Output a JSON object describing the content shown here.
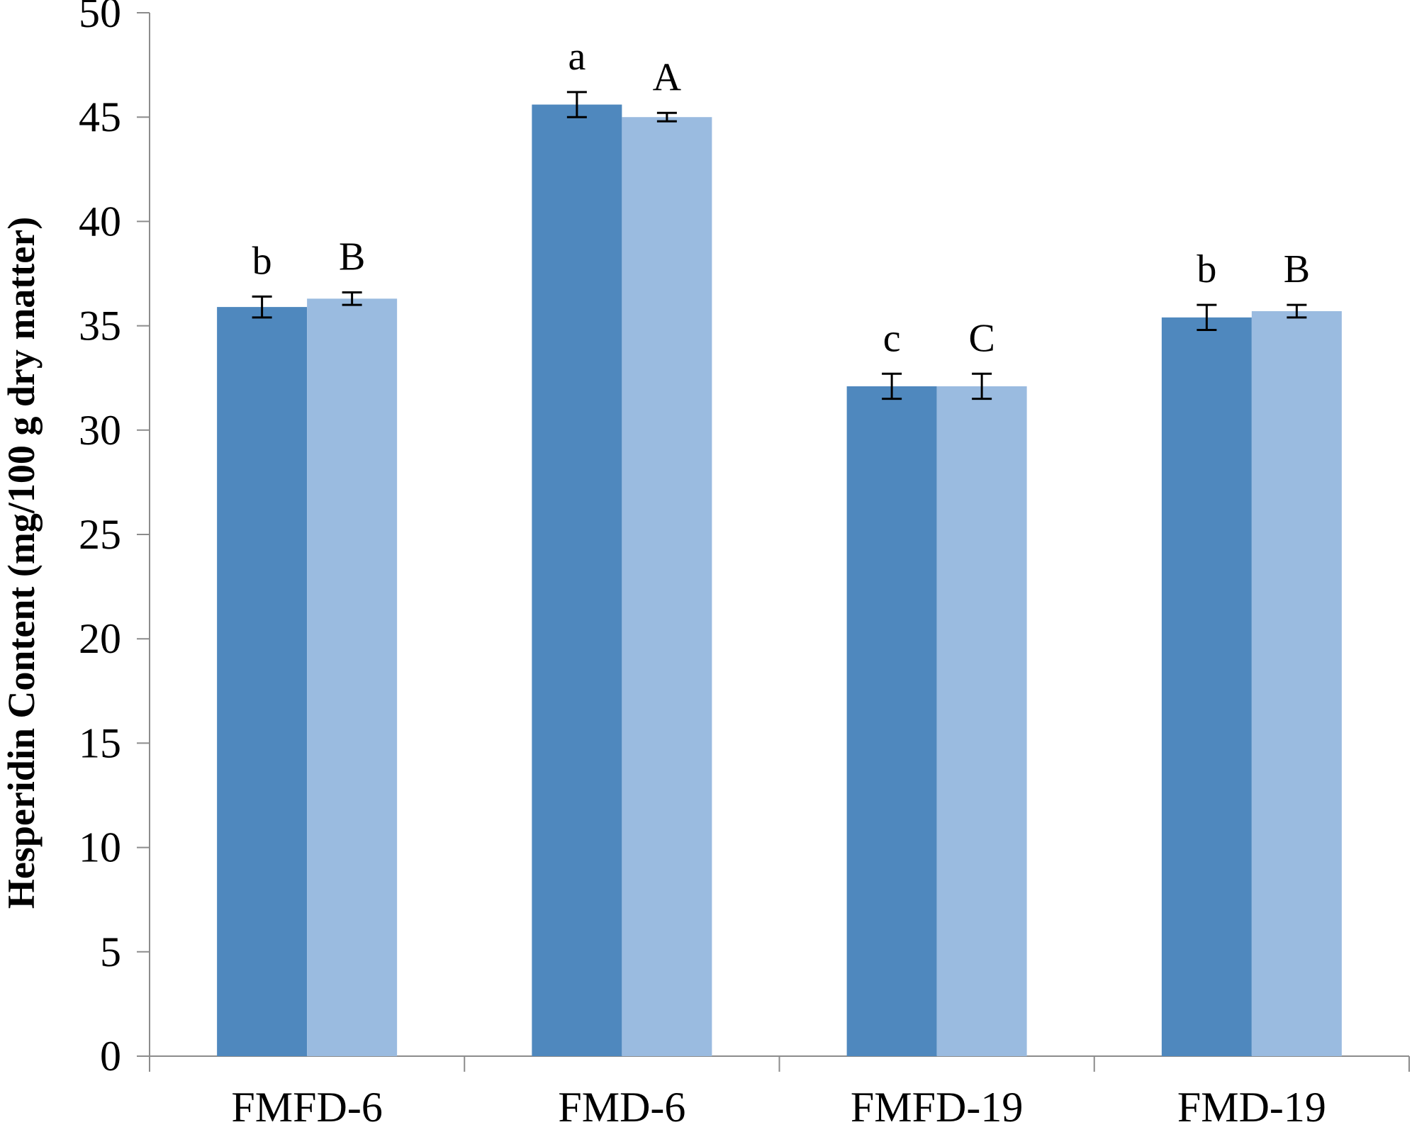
{
  "chart_data": {
    "type": "bar",
    "title": "",
    "xlabel": "",
    "ylabel": "Hesperidin Content (mg/100 g dry matter)",
    "ylim": [
      0,
      50
    ],
    "yticks": [
      0,
      5,
      10,
      15,
      20,
      25,
      30,
      35,
      40,
      45,
      50
    ],
    "grid": false,
    "legend": "none",
    "categories": [
      "FMFD-6",
      "FMD-6",
      "FMFD-19",
      "FMD-19"
    ],
    "series": [
      {
        "color": "#4f88be",
        "values": [
          35.9,
          45.6,
          32.1,
          35.4
        ],
        "errors": [
          0.5,
          0.6,
          0.6,
          0.6
        ],
        "labels": [
          "b",
          "a",
          "c",
          "b"
        ]
      },
      {
        "color": "#9abbe0",
        "values": [
          36.3,
          45.0,
          32.1,
          35.7
        ],
        "errors": [
          0.3,
          0.2,
          0.6,
          0.3
        ],
        "labels": [
          "B",
          "A",
          "C",
          "B"
        ]
      }
    ],
    "axis_color": "#8c8c8c",
    "error_bar_color": "#000000"
  }
}
